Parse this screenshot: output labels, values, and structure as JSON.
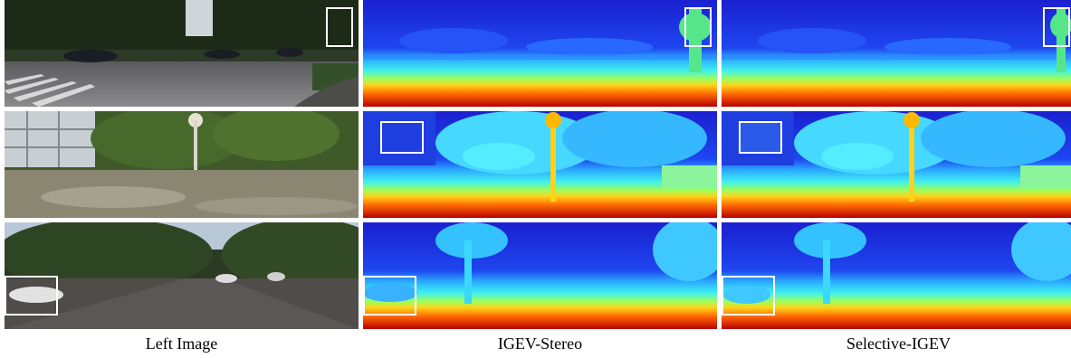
{
  "columns": [
    {
      "label": "Left Image"
    },
    {
      "label": "IGEV-Stereo"
    },
    {
      "label": "Selective-IGEV"
    }
  ],
  "rows": [
    {
      "scene": "road-crosswalk"
    },
    {
      "scene": "courtyard-lamppost"
    },
    {
      "scene": "street-parked-cars"
    }
  ],
  "colors": {
    "depth_far": "#1a1fcf",
    "depth_mid": "#2aa7ff",
    "depth_near_cyan": "#39e4ff",
    "depth_yellow": "#ffd21a",
    "depth_orange": "#ff6a00",
    "depth_red": "#c40000",
    "highlight": "#ffffff"
  }
}
